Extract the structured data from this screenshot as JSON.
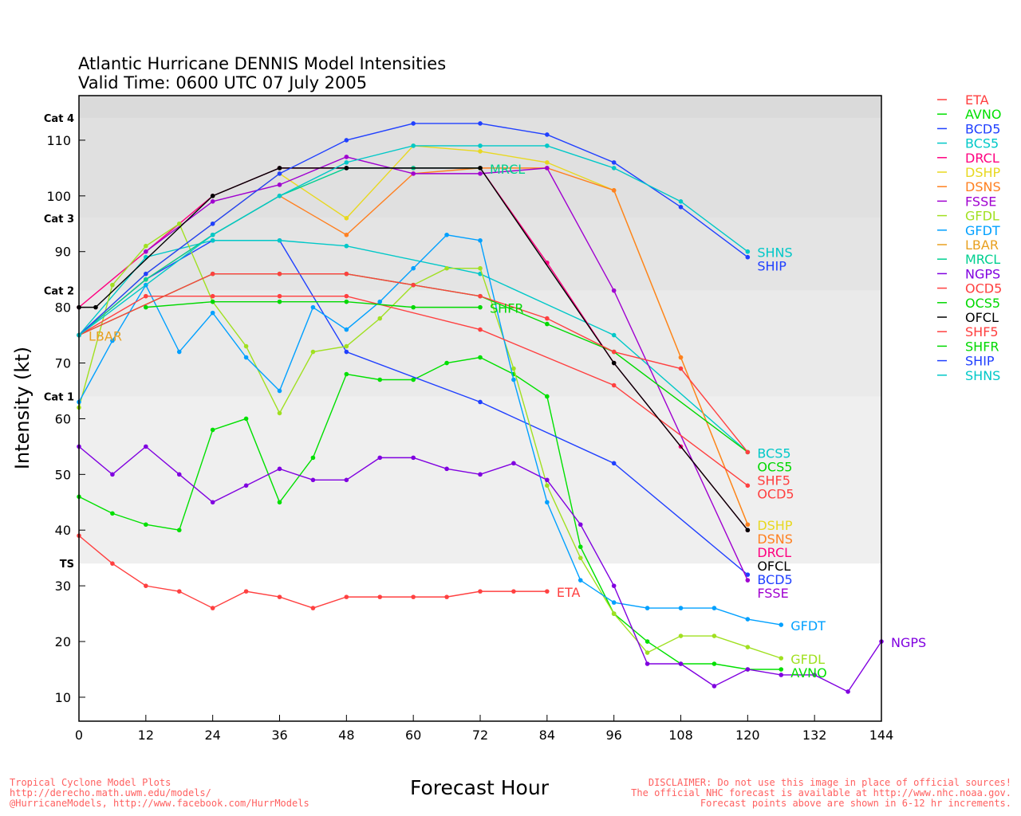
{
  "chart_data": {
    "type": "line",
    "title": "Atlantic Hurricane DENNIS Model Intensities",
    "subtitle": "Valid Time: 0600 UTC 07 July 2005",
    "xlabel": "Forecast Hour",
    "ylabel": "Intensity (kt)",
    "xlim": [
      0,
      144
    ],
    "ylim": [
      5.7,
      118
    ],
    "xticks": [
      0,
      12,
      24,
      36,
      48,
      60,
      72,
      84,
      96,
      108,
      120,
      132,
      144
    ],
    "yticks": [
      10,
      20,
      30,
      40,
      50,
      60,
      70,
      80,
      90,
      100,
      110
    ],
    "legend_position": "right",
    "categories": [
      {
        "label": "TS",
        "min": 34,
        "color": "#efefef"
      },
      {
        "label": "Cat 1",
        "min": 64,
        "color": "#eaeaea"
      },
      {
        "label": "Cat 2",
        "min": 83,
        "color": "#e4e4e4"
      },
      {
        "label": "Cat 3",
        "min": 96,
        "color": "#e0e0e0"
      },
      {
        "label": "Cat 4",
        "min": 114,
        "color": "#dadada"
      }
    ],
    "series": [
      {
        "name": "ETA",
        "color": "#ff4040",
        "x": [
          0,
          6,
          12,
          18,
          24,
          30,
          36,
          42,
          48,
          54,
          60,
          66,
          72,
          78,
          84
        ],
        "y": [
          39,
          34,
          30,
          29,
          26,
          29,
          28,
          26,
          28,
          28,
          28,
          28,
          29,
          29,
          29
        ]
      },
      {
        "name": "AVNO",
        "color": "#00e000",
        "x": [
          0,
          6,
          12,
          18,
          24,
          30,
          36,
          42,
          48,
          54,
          60,
          66,
          72,
          78,
          84,
          90,
          96,
          102,
          108,
          114,
          120,
          126
        ],
        "y": [
          46,
          43,
          41,
          40,
          58,
          60,
          45,
          53,
          68,
          67,
          67,
          70,
          71,
          68,
          64,
          37,
          25,
          20,
          16,
          16,
          15,
          15
        ]
      },
      {
        "name": "BCD5",
        "color": "#2040ff",
        "x": [
          0,
          12,
          24,
          36,
          48,
          72,
          96,
          120
        ],
        "y": [
          75,
          85,
          92,
          92,
          72,
          63,
          52,
          32
        ]
      },
      {
        "name": "BCS5",
        "color": "#00c8c8",
        "x": [
          0,
          12,
          24,
          36,
          48,
          72,
          96,
          120
        ],
        "y": [
          75,
          89,
          92,
          92,
          91,
          86,
          75,
          54
        ]
      },
      {
        "name": "DRCL",
        "color": "#ff0080",
        "x": [
          0,
          24,
          36,
          48,
          60,
          72,
          84,
          96,
          108,
          120
        ],
        "y": [
          80,
          100,
          105,
          105,
          105,
          105,
          88,
          70,
          55,
          40
        ]
      },
      {
        "name": "DSHP",
        "color": "#e8d820",
        "x": [
          0,
          12,
          24,
          36,
          48,
          60,
          72,
          84,
          96,
          108,
          120
        ],
        "y": [
          75,
          86,
          95,
          104,
          96,
          109,
          108,
          106,
          101,
          71,
          41
        ]
      },
      {
        "name": "DSNS",
        "color": "#ff8020",
        "x": [
          0,
          12,
          24,
          36,
          48,
          60,
          72,
          84,
          96,
          108,
          120
        ],
        "y": [
          75,
          85,
          93,
          100,
          93,
          104,
          105,
          105,
          101,
          71,
          41
        ]
      },
      {
        "name": "FSSE",
        "color": "#a000d0",
        "x": [
          12,
          24,
          36,
          48,
          60,
          72,
          84,
          96,
          120
        ],
        "y": [
          90,
          99,
          102,
          107,
          104,
          104,
          105,
          83,
          31
        ]
      },
      {
        "name": "GFDL",
        "color": "#a0e020",
        "x": [
          0,
          6,
          12,
          18,
          24,
          30,
          36,
          42,
          48,
          54,
          60,
          66,
          72,
          78,
          84,
          90,
          96,
          102,
          108,
          114,
          120,
          126
        ],
        "y": [
          62,
          84,
          91,
          95,
          81,
          73,
          61,
          72,
          73,
          78,
          84,
          87,
          87,
          69,
          48,
          35,
          25,
          18,
          21,
          21,
          19,
          17
        ]
      },
      {
        "name": "GFDT",
        "color": "#00a0ff",
        "x": [
          0,
          6,
          12,
          18,
          24,
          30,
          36,
          42,
          48,
          54,
          60,
          66,
          72,
          78,
          84,
          90,
          96,
          102,
          108,
          114,
          120,
          126
        ],
        "y": [
          63,
          74,
          84,
          72,
          79,
          71,
          65,
          80,
          76,
          81,
          87,
          93,
          92,
          67,
          45,
          31,
          27,
          26,
          26,
          26,
          24,
          23
        ]
      },
      {
        "name": "LBAR",
        "color": "#e8a020",
        "x": [
          0
        ],
        "y": [
          75
        ]
      },
      {
        "name": "MRCL",
        "color": "#00d090",
        "x": [
          0,
          12,
          24,
          36,
          48,
          60,
          72
        ],
        "y": [
          75,
          85,
          93,
          100,
          105,
          105,
          105
        ]
      },
      {
        "name": "NGPS",
        "color": "#8000e0",
        "x": [
          0,
          6,
          12,
          18,
          24,
          30,
          36,
          42,
          48,
          54,
          60,
          66,
          72,
          78,
          84,
          90,
          96,
          102,
          108,
          114,
          120,
          126,
          132,
          138,
          144
        ],
        "y": [
          55,
          50,
          55,
          50,
          45,
          48,
          51,
          49,
          49,
          53,
          53,
          51,
          50,
          52,
          49,
          41,
          30,
          16,
          16,
          12,
          15,
          14,
          14,
          11,
          20
        ]
      },
      {
        "name": "OCD5",
        "color": "#ff4040",
        "x": [
          0,
          12,
          24,
          36,
          48,
          72,
          96,
          120
        ],
        "y": [
          75,
          82,
          82,
          82,
          82,
          76,
          66,
          48
        ]
      },
      {
        "name": "OCS5",
        "color": "#00d800",
        "x": [
          0,
          24,
          36,
          48,
          60,
          72,
          84,
          96,
          120
        ],
        "y": [
          75,
          86,
          86,
          86,
          84,
          82,
          77,
          72,
          54
        ]
      },
      {
        "name": "OFCL",
        "color": "#000000",
        "x": [
          0,
          3,
          24,
          36,
          48,
          72,
          96,
          120
        ],
        "y": [
          80,
          80,
          100,
          105,
          105,
          105,
          70,
          40
        ]
      },
      {
        "name": "SHF5",
        "color": "#ff4040",
        "x": [
          0,
          24,
          36,
          48,
          60,
          72,
          84,
          96,
          108,
          120
        ],
        "y": [
          75,
          86,
          86,
          86,
          84,
          82,
          78,
          72,
          69,
          54
        ]
      },
      {
        "name": "SHFR",
        "color": "#00d800",
        "x": [
          12,
          24,
          36,
          48,
          60,
          72
        ],
        "y": [
          80,
          81,
          81,
          81,
          80,
          80
        ]
      },
      {
        "name": "SHIP",
        "color": "#2040ff",
        "x": [
          0,
          12,
          24,
          36,
          48,
          60,
          72,
          84,
          96,
          108,
          120
        ],
        "y": [
          75,
          86,
          95,
          104,
          110,
          113,
          113,
          111,
          106,
          98,
          89
        ]
      },
      {
        "name": "SHNS",
        "color": "#00c8c8",
        "x": [
          0,
          24,
          36,
          48,
          60,
          72,
          84,
          96,
          108,
          120
        ],
        "y": [
          75,
          93,
          100,
          106,
          109,
          109,
          109,
          105,
          99,
          90
        ]
      }
    ]
  },
  "footer": {
    "left": [
      "Tropical Cyclone Model Plots",
      "http://derecho.math.uwm.edu/models/",
      "@HurricaneModels, http://www.facebook.com/HurrModels"
    ],
    "right": [
      "DISCLAIMER: Do not use this image in place of official sources!",
      "The official NHC forecast is available at http://www.nhc.noaa.gov.",
      "Forecast points above are shown in 6-12 hr increments."
    ]
  }
}
